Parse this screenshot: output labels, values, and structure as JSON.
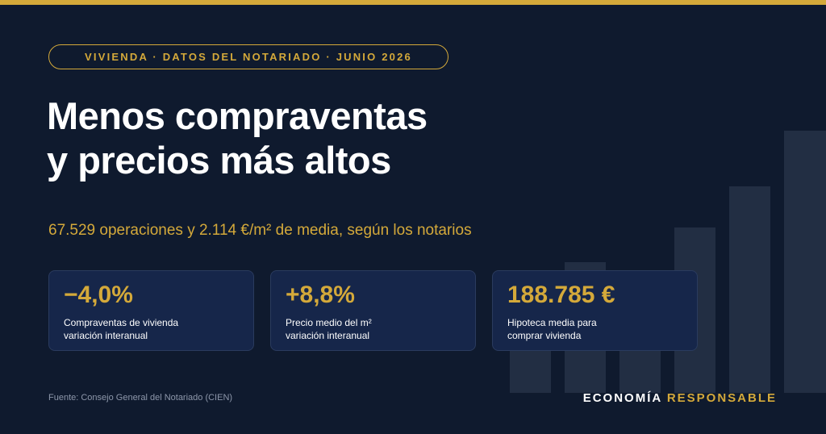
{
  "tag": "VIVIENDA · DATOS DEL NOTARIADO · JUNIO 2026",
  "title": [
    "Menos compraventas",
    "y precios más altos"
  ],
  "subtitle": "67.529 operaciones y 2.114 €/m² de media, según los notarios",
  "cards": [
    {
      "value": "−4,0%",
      "label": [
        "Compraventas de vivienda",
        "variación interanual"
      ]
    },
    {
      "value": "+8,8%",
      "label": [
        "Precio medio del m²",
        "variación interanual"
      ]
    },
    {
      "value": "188.785 €",
      "label": [
        "Hipoteca media para",
        "comprar vivienda"
      ]
    }
  ],
  "source": "Fuente: Consejo General del Notariado (CIEN)",
  "brand": [
    "ECONOMÍA",
    "RESPONSABLE"
  ]
}
